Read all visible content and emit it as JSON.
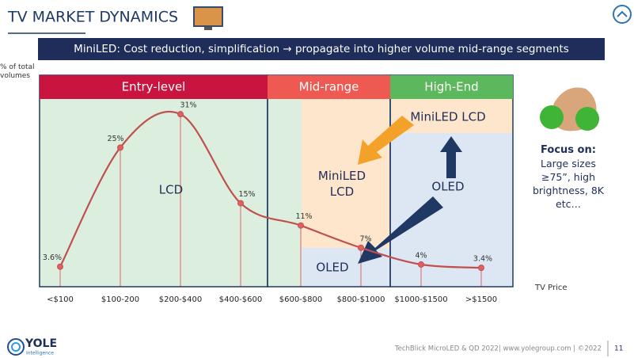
{
  "header": {
    "title": "TV MARKET DYNAMICS"
  },
  "banner": "MiniLED: Cost reduction, simplification → propagate into higher volume mid-range segments",
  "chart_data": {
    "type": "line",
    "y_label": "% of total volumes",
    "x_label": "TV Price",
    "categories": [
      "<$100",
      "$100-200",
      "$200-$400",
      "$400-$600",
      "$600-$800",
      "$800-$1000",
      "$1000-$1500",
      ">$1500"
    ],
    "values": [
      3.6,
      25,
      31,
      15,
      11,
      7,
      4,
      3.4
    ],
    "value_labels": [
      "3.6%",
      "25%",
      "31%",
      "15%",
      "11%",
      "7%",
      "4%",
      "3.4%"
    ],
    "color": "#c0504d",
    "ylim": [
      0,
      38
    ],
    "segments": [
      {
        "name": "Entry-level",
        "color": "#c8143f"
      },
      {
        "name": "Mid-range",
        "color": "#ee5a52"
      },
      {
        "name": "High-End",
        "color": "#5cb85c"
      }
    ],
    "annotations": [
      "LCD",
      "MiniLED LCD",
      "OLED",
      "MiniLED LCD",
      "OLED"
    ]
  },
  "side_note": {
    "title": "Focus on:",
    "text": "Large sizes ≥75”, high brightness, 8K etc…"
  },
  "footer": {
    "logo": "YOLE",
    "logo_sub": "Intelligence",
    "source": "TechBlick MicroLED & QD 2022| www.yolegroup.com | ©2022",
    "page": 11
  }
}
